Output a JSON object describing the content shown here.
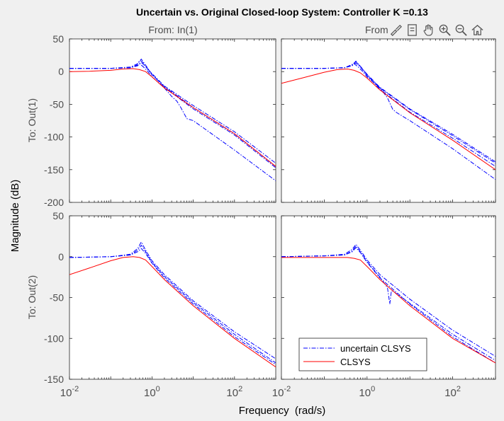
{
  "window": {
    "title": "Uncertain vs. Original Closed-loop System: Controller K =0.13"
  },
  "toolbar": {
    "buttons": [
      {
        "name": "brush-icon"
      },
      {
        "name": "legend-icon"
      },
      {
        "name": "pan-icon"
      },
      {
        "name": "zoom-in-icon"
      },
      {
        "name": "zoom-out-icon"
      },
      {
        "name": "home-icon"
      }
    ]
  },
  "chart_data": {
    "type": "line",
    "title": "Uncertain vs. Original Closed-loop System: Controller K =0.13",
    "xlabel": "Frequency  (rad/s)",
    "ylabel": "Magnitude (dB)",
    "xscale": "log",
    "xlim": [
      0.01,
      1000
    ],
    "x_ticks": [
      {
        "base": "10",
        "exp": "-2",
        "value": 0.01
      },
      {
        "base": "10",
        "exp": "0",
        "value": 1
      },
      {
        "base": "10",
        "exp": "2",
        "value": 100
      }
    ],
    "column_titles": [
      "From: In(1)",
      "From"
    ],
    "row_titles": [
      "To: Out(1)",
      "To: Out(2)"
    ],
    "rows": [
      {
        "ylim": [
          -200,
          50
        ],
        "yticks": [
          "50",
          "0",
          "-50",
          "-100",
          "-150",
          "-200"
        ],
        "ytick_values": [
          50,
          0,
          -50,
          -100,
          -150,
          -200
        ]
      },
      {
        "ylim": [
          -150,
          50
        ],
        "yticks": [
          "50",
          "0",
          "-50",
          "-100",
          "-150"
        ],
        "ytick_values": [
          50,
          0,
          -50,
          -100,
          -150
        ]
      }
    ],
    "grid": false,
    "legend": {
      "placement": "lower-left of bottom-right axes",
      "entries": [
        "uncertain CLSYS",
        "CLSYS"
      ]
    },
    "colors": {
      "uncertain": "#0000ff",
      "nominal": "#ff0000"
    },
    "panels": [
      {
        "row": 0,
        "col": 0,
        "nominal": {
          "x": [
            0.01,
            0.03,
            0.1,
            0.2,
            0.35,
            0.5,
            0.7,
            1,
            2,
            10,
            100,
            1000
          ],
          "y": [
            0,
            0.5,
            2,
            4,
            4.5,
            3,
            0,
            -8,
            -25,
            -55,
            -95,
            -145
          ]
        },
        "uncertain": [
          {
            "x": [
              0.01,
              0.1,
              0.3,
              0.45,
              0.52,
              0.6,
              0.8,
              1,
              2,
              10,
              100,
              1000
            ],
            "y": [
              5,
              5,
              7,
              12,
              17,
              14,
              3,
              -5,
              -23,
              -55,
              -95,
              -145
            ]
          },
          {
            "x": [
              0.01,
              0.1,
              0.3,
              0.45,
              0.55,
              0.65,
              0.9,
              1.2,
              2,
              10,
              100,
              1000
            ],
            "y": [
              5,
              5,
              6,
              10,
              14,
              10,
              0,
              -8,
              -22,
              -52,
              -92,
              -140
            ]
          },
          {
            "x": [
              0.01,
              0.1,
              0.3,
              0.45,
              0.5,
              0.6,
              0.8,
              1,
              2,
              3,
              4,
              5,
              7,
              10,
              100,
              1000
            ],
            "y": [
              5,
              5,
              6,
              9,
              12,
              8,
              0,
              -8,
              -25,
              -38,
              -45,
              -55,
              -72,
              -75,
              -120,
              -167
            ]
          },
          {
            "x": [
              0.01,
              0.1,
              0.3,
              0.4,
              0.55,
              0.7,
              1,
              2,
              10,
              100,
              1000
            ],
            "y": [
              5,
              5,
              6,
              9,
              19,
              10,
              -4,
              -24,
              -57,
              -97,
              -147
            ]
          }
        ]
      },
      {
        "row": 0,
        "col": 1,
        "nominal": {
          "x": [
            0.01,
            0.03,
            0.1,
            0.2,
            0.35,
            0.5,
            0.7,
            1,
            2,
            10,
            100,
            1000
          ],
          "y": [
            -18,
            -10,
            -1,
            3,
            4,
            2,
            -2,
            -10,
            -28,
            -63,
            -105,
            -150
          ]
        },
        "uncertain": [
          {
            "x": [
              0.01,
              0.1,
              0.3,
              0.45,
              0.55,
              0.7,
              1,
              2,
              10,
              100,
              1000
            ],
            "y": [
              5,
              5,
              6,
              10,
              16,
              8,
              -5,
              -25,
              -58,
              -98,
              -140
            ]
          },
          {
            "x": [
              0.01,
              0.1,
              0.3,
              0.45,
              0.55,
              0.7,
              1,
              2,
              10,
              100,
              1000
            ],
            "y": [
              5,
              5,
              6,
              11,
              15,
              8,
              -4,
              -24,
              -57,
              -96,
              -138
            ]
          },
          {
            "x": [
              0.01,
              0.1,
              0.3,
              0.45,
              0.5,
              0.6,
              0.8,
              1,
              2,
              3,
              3.5,
              4,
              5,
              10,
              100,
              1000
            ],
            "y": [
              5,
              5,
              6,
              9,
              12,
              8,
              0,
              -8,
              -25,
              -40,
              -50,
              -58,
              -63,
              -75,
              -118,
              -165
            ]
          },
          {
            "x": [
              0.01,
              0.1,
              0.3,
              0.45,
              0.55,
              0.7,
              1,
              2,
              10,
              100,
              1000
            ],
            "y": [
              5,
              5,
              6,
              10,
              13,
              7,
              -6,
              -27,
              -62,
              -102,
              -145
            ]
          }
        ]
      },
      {
        "row": 1,
        "col": 0,
        "nominal": {
          "x": [
            0.01,
            0.03,
            0.1,
            0.2,
            0.35,
            0.5,
            0.7,
            1,
            2,
            10,
            100,
            1000
          ],
          "y": [
            -22,
            -14,
            -5,
            -1,
            0,
            -1,
            -4,
            -12,
            -28,
            -60,
            -100,
            -135
          ]
        },
        "uncertain": [
          {
            "x": [
              0.01,
              0.1,
              0.3,
              0.45,
              0.55,
              0.7,
              1,
              2,
              10,
              100,
              1000
            ],
            "y": [
              -1,
              0,
              3,
              10,
              18,
              8,
              -5,
              -22,
              -54,
              -92,
              -125
            ]
          },
          {
            "x": [
              0.01,
              0.1,
              0.3,
              0.45,
              0.55,
              0.7,
              1,
              2,
              10,
              100,
              1000
            ],
            "y": [
              -1,
              0,
              2,
              8,
              14,
              6,
              -7,
              -24,
              -56,
              -95,
              -130
            ]
          },
          {
            "x": [
              0.01,
              0.1,
              0.3,
              0.45,
              0.55,
              0.7,
              1,
              2,
              10,
              100,
              1000
            ],
            "y": [
              -1,
              0,
              2,
              6,
              10,
              4,
              -8,
              -26,
              -58,
              -98,
              -132
            ]
          }
        ]
      },
      {
        "row": 1,
        "col": 1,
        "nominal": {
          "x": [
            0.01,
            0.03,
            0.1,
            0.2,
            0.35,
            0.5,
            0.7,
            1,
            2,
            10,
            100,
            1000
          ],
          "y": [
            -1,
            -1,
            -1,
            -1,
            -1,
            -2,
            -4,
            -12,
            -28,
            -60,
            -100,
            -130
          ]
        },
        "uncertain": [
          {
            "x": [
              0.01,
              0.1,
              0.3,
              0.45,
              0.55,
              0.7,
              1,
              2,
              10,
              100,
              1000
            ],
            "y": [
              0,
              1,
              3,
              9,
              15,
              8,
              -4,
              -22,
              -52,
              -90,
              -122
            ]
          },
          {
            "x": [
              0.01,
              0.1,
              0.3,
              0.45,
              0.55,
              0.7,
              1,
              2,
              3,
              3.4,
              3.7,
              4,
              10,
              100,
              1000
            ],
            "y": [
              0,
              1,
              2,
              7,
              13,
              6,
              -6,
              -25,
              -38,
              -58,
              -42,
              -42,
              -57,
              -95,
              -127
            ]
          },
          {
            "x": [
              0.01,
              0.1,
              0.3,
              0.45,
              0.55,
              0.7,
              1,
              2,
              10,
              100,
              1000
            ],
            "y": [
              0,
              1,
              2,
              6,
              11,
              5,
              -7,
              -26,
              -58,
              -98,
              -130
            ]
          }
        ]
      }
    ]
  }
}
